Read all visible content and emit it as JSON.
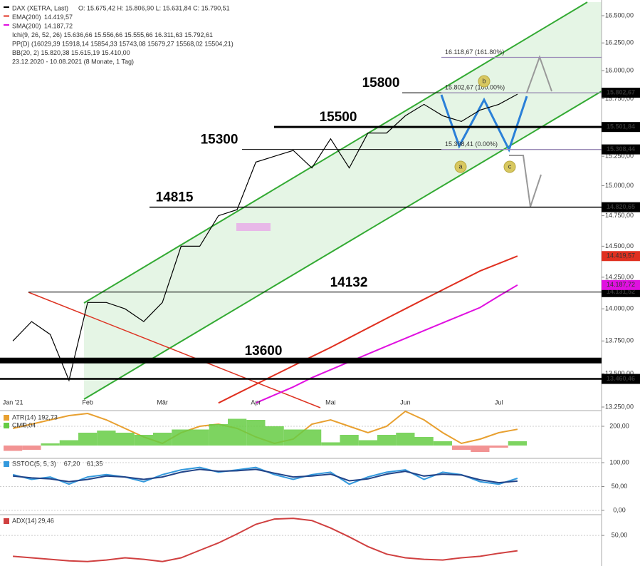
{
  "chart_data": [
    {
      "type": "line",
      "log_scale": true,
      "grid": false,
      "categories": [
        "Jan '21",
        null,
        null,
        null,
        "Feb",
        null,
        null,
        null,
        "Mär",
        null,
        null,
        null,
        null,
        "Apr",
        null,
        null,
        null,
        "Mai",
        null,
        null,
        null,
        "Jun",
        null,
        null,
        null,
        null,
        "Jul",
        null,
        null,
        null,
        null,
        null
      ],
      "ylim": [
        13250,
        16500
      ],
      "yticks": [
        {
          "value": 13250,
          "label": "13.250,00"
        },
        {
          "value": 13500,
          "label": "13.500,00"
        },
        {
          "value": 13750,
          "label": "13.750,00"
        },
        {
          "value": 14000,
          "label": "14.000,00"
        },
        {
          "value": 14250,
          "label": "14.250,00"
        },
        {
          "value": 14500,
          "label": "14.500,00"
        },
        {
          "value": 14750,
          "label": "14.750,00"
        },
        {
          "value": 15000,
          "label": "15.000,00"
        },
        {
          "value": 15250,
          "label": "15.250,00"
        },
        {
          "value": 15500,
          "label": "15.500,00"
        },
        {
          "value": 15750,
          "label": "15.750,00"
        },
        {
          "value": 16000,
          "label": "16.000,00"
        },
        {
          "value": 16250,
          "label": "16.250,00"
        },
        {
          "value": 16500,
          "label": "16.500,00"
        }
      ],
      "series": [
        {
          "name": "DAX (XETRA, Last)",
          "color": "#000000",
          "last_label": "O: 15.675,42   H: 15.806,90   L: 15.631,84   C: 15.790,51",
          "values": [
            13750,
            13900,
            13800,
            13450,
            14050,
            14050,
            14000,
            13900,
            14050,
            14500,
            14500,
            14750,
            14800,
            15200,
            15250,
            15300,
            15150,
            15400,
            15150,
            15450,
            15450,
            15600,
            15700,
            15600,
            15550,
            15650,
            15700,
            15790,
            null,
            null,
            null,
            null
          ]
        },
        {
          "name": "EMA(200)",
          "color": "#e03020",
          "last_label": "14.419,57",
          "values": [
            null,
            null,
            null,
            null,
            null,
            null,
            null,
            null,
            null,
            null,
            null,
            13280,
            13350,
            13420,
            13490,
            13560,
            13630,
            13700,
            13775,
            13850,
            13925,
            14000,
            14075,
            14150,
            14225,
            14300,
            14360,
            14420,
            null,
            null,
            null,
            null
          ]
        },
        {
          "name": "SMA(200)",
          "color": "#e010e0",
          "last_label": "14.187,72",
          "values": [
            null,
            null,
            null,
            null,
            null,
            null,
            null,
            null,
            null,
            null,
            null,
            null,
            null,
            13280,
            13340,
            13400,
            13470,
            13530,
            13590,
            13650,
            13710,
            13770,
            13830,
            13890,
            13950,
            14010,
            14100,
            14188,
            null,
            null,
            null,
            null
          ]
        }
      ],
      "legend_extra": [
        "Ichi(9, 26, 52, 26)   15.636,66   15.556,66   15.555,66   16.311,63   15.792,61",
        "PP(D)   (16029,39   15918,14   15854,33   15743,08   15679,27   15568,02   15504,21)",
        "BB(20, 2)   15.820,38   15.615,19   15.410,00",
        "23.12.2020 - 10.08.2021   (8 Monate, 1 Tag)"
      ],
      "hlines": [
        {
          "value": 15802.67,
          "label": "15.802,67",
          "annotation": "15800"
        },
        {
          "value": 15501.84,
          "label": "15.501,84",
          "annotation": "15500"
        },
        {
          "value": 15308.44,
          "label": "15.308,44",
          "annotation": "15300"
        },
        {
          "value": 14820.65,
          "label": "14.820,65",
          "annotation": "14815"
        },
        {
          "value": 14131.52,
          "label": "14.131,52",
          "annotation": "14132"
        },
        {
          "value": 13600,
          "annotation": "13600"
        },
        {
          "value": 13460.46,
          "label": "13.460,46"
        }
      ],
      "fib_levels": [
        {
          "value": 16118.67,
          "label": "16.118,67 (161.80%)"
        },
        {
          "value": 15802.67,
          "label": "15.802,67 (100.00%)"
        },
        {
          "value": 15308.41,
          "label": "15.308,41 (0.00%)"
        }
      ],
      "wave_labels": [
        "a",
        "b",
        "c"
      ]
    },
    {
      "type": "line",
      "grid": true,
      "ylim": [
        130,
        230
      ],
      "yticks": [
        {
          "value": 200,
          "label": "200,00"
        }
      ],
      "y2lim": [
        -0.1,
        0.3
      ],
      "series": [
        {
          "name": "ATR(14)",
          "color": "#e8a030",
          "last_label": "192,73",
          "values": [
            195,
            205,
            215,
            225,
            230,
            215,
            195,
            175,
            160,
            185,
            200,
            205,
            195,
            175,
            160,
            170,
            205,
            215,
            200,
            185,
            200,
            235,
            215,
            185,
            160,
            170,
            185,
            193,
            null,
            null,
            null,
            null
          ]
        },
        {
          "name": "CMF",
          "color": "#66cc44",
          "negative_color": "#f08080",
          "axis": "y2",
          "kind": "bar",
          "last_label": "0,04",
          "values": [
            -0.05,
            -0.04,
            0.02,
            0.05,
            0.12,
            0.14,
            0.12,
            0.1,
            0.12,
            0.15,
            0.15,
            0.2,
            0.25,
            0.24,
            0.18,
            0.15,
            0.15,
            0.03,
            0.1,
            0.05,
            0.1,
            0.12,
            0.08,
            0.04,
            -0.04,
            -0.06,
            -0.02,
            0.04,
            null,
            null,
            null,
            null
          ]
        }
      ]
    },
    {
      "type": "line",
      "grid": true,
      "ylim": [
        -6,
        106
      ],
      "yticks": [
        {
          "value": 0,
          "label": "0,00"
        },
        {
          "value": 50,
          "label": "50,00"
        },
        {
          "value": 100,
          "label": "100,00"
        }
      ],
      "series": [
        {
          "name": "SSTOC(5, 5, 3)",
          "color": "#3399dd",
          "last_label": "67,20",
          "values": [
            75,
            65,
            70,
            55,
            70,
            75,
            70,
            60,
            75,
            85,
            90,
            80,
            85,
            90,
            75,
            65,
            75,
            80,
            55,
            70,
            80,
            85,
            65,
            80,
            75,
            60,
            55,
            67.2,
            null,
            null,
            null,
            null
          ]
        },
        {
          "color": "#224488",
          "last_label": "61,35",
          "values": [
            72,
            68,
            66,
            60,
            65,
            72,
            70,
            65,
            70,
            80,
            86,
            82,
            83,
            86,
            78,
            70,
            72,
            76,
            62,
            66,
            76,
            82,
            72,
            76,
            74,
            64,
            58,
            61.35,
            null,
            null,
            null,
            null
          ]
        }
      ]
    },
    {
      "type": "line",
      "grid": true,
      "ylim": [
        9,
        75
      ],
      "yticks": [
        {
          "value": 50,
          "label": "50,00"
        }
      ],
      "series": [
        {
          "name": "ADX(14)",
          "color": "#d04040",
          "last_label": "29,46",
          "values": [
            22,
            20,
            18,
            16,
            15,
            17,
            20,
            18,
            15,
            20,
            30,
            40,
            52,
            65,
            72,
            73,
            70,
            60,
            48,
            35,
            25,
            20,
            18,
            17,
            20,
            22,
            26,
            29.46,
            null,
            null,
            null,
            null
          ]
        }
      ]
    }
  ]
}
